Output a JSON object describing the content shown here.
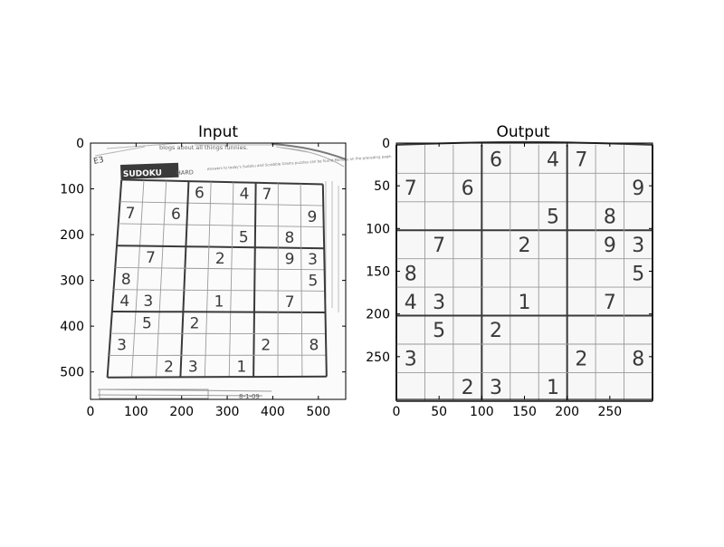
{
  "chart_data": [
    {
      "type": "image",
      "title": "Input",
      "xlim": [
        0,
        560
      ],
      "ylim": [
        560,
        0
      ],
      "xticks": [
        0,
        100,
        200,
        300,
        400,
        500
      ],
      "yticks": [
        0,
        100,
        200,
        300,
        400,
        500
      ],
      "image_content": {
        "header_banner": "blogs about all things funnies.",
        "puzzle_label": "SUDOKU",
        "difficulty": "HARD",
        "side_note": "Answers to today's Sudoku and Scrabble Grams puzzles can be found Monday on the preceding page.",
        "footer_date": "8-1-09",
        "page_number": "E3",
        "grid_rows": [
          [
            "",
            "",
            "",
            "6",
            "",
            "4",
            "7",
            "",
            ""
          ],
          [
            "7",
            "",
            "6",
            "",
            "",
            "",
            "",
            "",
            "9"
          ],
          [
            "",
            "",
            "",
            "",
            "",
            "5",
            "",
            "8",
            ""
          ],
          [
            "",
            "7",
            "",
            "",
            "2",
            "",
            "",
            "9",
            "3"
          ],
          [
            "8",
            "",
            "",
            "",
            "",
            "",
            "",
            "",
            "5"
          ],
          [
            "4",
            "3",
            "",
            "",
            "1",
            "",
            "",
            "7",
            ""
          ],
          [
            "",
            "5",
            "",
            "2",
            "",
            "",
            "",
            "",
            ""
          ],
          [
            "3",
            "",
            "",
            "",
            "",
            "",
            "2",
            "",
            "8"
          ],
          [
            "",
            "",
            "2",
            "3",
            "",
            "1",
            "",
            "",
            ""
          ]
        ]
      }
    },
    {
      "type": "image",
      "title": "Output",
      "xlim": [
        0,
        300
      ],
      "ylim": [
        300,
        0
      ],
      "xticks": [
        0,
        50,
        100,
        150,
        200,
        250
      ],
      "yticks": [
        0,
        50,
        100,
        150,
        200,
        250
      ],
      "image_content": {
        "description": "Perspective-rectified sudoku grid",
        "grid_rows": [
          [
            "",
            "",
            "",
            "6",
            "",
            "4",
            "7",
            "",
            ""
          ],
          [
            "7",
            "",
            "6",
            "",
            "",
            "",
            "",
            "",
            "9"
          ],
          [
            "",
            "",
            "",
            "",
            "",
            "5",
            "",
            "8",
            ""
          ],
          [
            "",
            "7",
            "",
            "",
            "2",
            "",
            "",
            "9",
            "3"
          ],
          [
            "8",
            "",
            "",
            "",
            "",
            "",
            "",
            "",
            "5"
          ],
          [
            "4",
            "3",
            "",
            "",
            "1",
            "",
            "",
            "7",
            ""
          ],
          [
            "",
            "5",
            "",
            "2",
            "",
            "",
            "",
            "",
            ""
          ],
          [
            "3",
            "",
            "",
            "",
            "",
            "",
            "2",
            "",
            "8"
          ],
          [
            "",
            "",
            "2",
            "3",
            "",
            "1",
            "",
            "",
            ""
          ]
        ]
      }
    }
  ]
}
